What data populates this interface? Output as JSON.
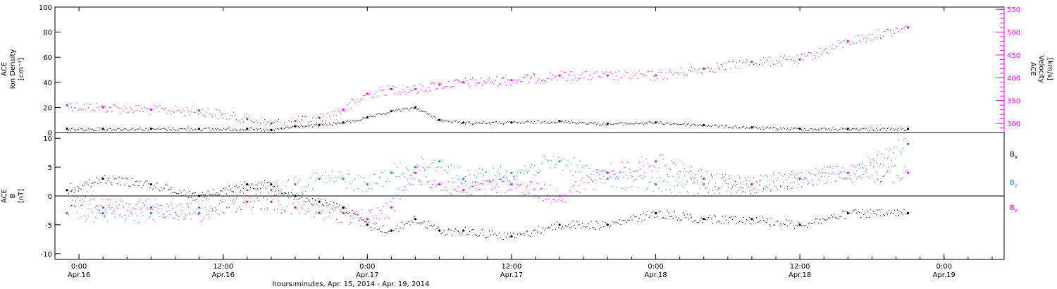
{
  "chart_data": [
    {
      "type": "scatter",
      "ylabel_lines": [
        "ACE",
        "Ion Density",
        "[cm⁻³]"
      ],
      "y_ticks": [
        "0",
        "20",
        "40",
        "60",
        "80",
        "100"
      ],
      "ylim": [
        0,
        100
      ],
      "y2label_lines": [
        "ACE",
        "Velocity",
        "[km/s]"
      ],
      "y2_ticks": [
        "300",
        "350",
        "400",
        "450",
        "500",
        "550"
      ],
      "y2lim": [
        280,
        555
      ],
      "series": [
        {
          "axis": "left",
          "color": "#000000",
          "x": [
            "2014-04-15 23:00",
            "2014-04-16 02:00",
            "2014-04-16 06:00",
            "2014-04-16 10:00",
            "2014-04-16 14:00",
            "2014-04-16 16:00",
            "2014-04-16 18:00",
            "2014-04-16 20:00",
            "2014-04-16 22:00",
            "2014-04-17 00:00",
            "2014-04-17 02:00",
            "2014-04-17 04:00",
            "2014-04-17 06:00",
            "2014-04-17 08:00",
            "2014-04-17 12:00",
            "2014-04-17 16:00",
            "2014-04-17 20:00",
            "2014-04-18 00:00",
            "2014-04-18 04:00",
            "2014-04-18 08:00",
            "2014-04-18 12:00",
            "2014-04-18 16:00",
            "2014-04-18 21:00"
          ],
          "values": [
            3,
            3,
            3,
            3,
            3,
            2,
            5,
            6,
            8,
            12,
            17,
            20,
            10,
            8,
            8,
            9,
            7,
            8,
            6,
            4,
            3,
            3,
            3
          ]
        },
        {
          "axis": "right",
          "color": "#ff00ff",
          "x": [
            "2014-04-15 23:00",
            "2014-04-16 02:00",
            "2014-04-16 06:00",
            "2014-04-16 10:00",
            "2014-04-16 14:00",
            "2014-04-16 16:00",
            "2014-04-16 18:00",
            "2014-04-16 20:00",
            "2014-04-16 22:00",
            "2014-04-17 00:00",
            "2014-04-17 02:00",
            "2014-04-17 04:00",
            "2014-04-17 06:00",
            "2014-04-17 08:00",
            "2014-04-17 12:00",
            "2014-04-17 16:00",
            "2014-04-17 20:00",
            "2014-04-18 00:00",
            "2014-04-18 04:00",
            "2014-04-18 08:00",
            "2014-04-18 12:00",
            "2014-04-18 16:00",
            "2014-04-18 21:00"
          ],
          "values": [
            340,
            335,
            330,
            328,
            310,
            300,
            305,
            312,
            330,
            365,
            375,
            375,
            385,
            390,
            395,
            405,
            405,
            405,
            420,
            435,
            440,
            480,
            510
          ]
        }
      ]
    },
    {
      "type": "scatter",
      "ylabel_lines": [
        "ACE",
        "B",
        "[nT]"
      ],
      "y_ticks": [
        "-10",
        "-5",
        "0",
        "5",
        "10"
      ],
      "ylim": [
        -11,
        11
      ],
      "zero_line": true,
      "xlabel": "hours:minutes, Apr. 15, 2014 - Apr. 19, 2014",
      "x_tick_times": [
        "0:00",
        "12:00",
        "0:00",
        "12:00",
        "0:00",
        "12:00",
        "0:00"
      ],
      "x_tick_dates": [
        "Apr.16",
        "Apr.16",
        "Apr.17",
        "Apr.17",
        "Apr.18",
        "Apr.18",
        "Apr.19"
      ],
      "xlim": [
        "2014-04-15 22:00",
        "2014-04-19 05:00"
      ],
      "series": [
        {
          "name": "B_x",
          "label_main": "B",
          "label_sub": "x",
          "color": "#000000",
          "x": [
            "2014-04-15 23:00",
            "2014-04-16 02:00",
            "2014-04-16 06:00",
            "2014-04-16 10:00",
            "2014-04-16 14:00",
            "2014-04-16 16:00",
            "2014-04-16 18:00",
            "2014-04-16 20:00",
            "2014-04-16 22:00",
            "2014-04-17 00:00",
            "2014-04-17 02:00",
            "2014-04-17 04:00",
            "2014-04-17 06:00",
            "2014-04-17 08:00",
            "2014-04-17 12:00",
            "2014-04-17 16:00",
            "2014-04-17 20:00",
            "2014-04-18 00:00",
            "2014-04-18 04:00",
            "2014-04-18 08:00",
            "2014-04-18 12:00",
            "2014-04-18 16:00",
            "2014-04-18 21:00"
          ],
          "values": [
            1,
            3,
            2,
            0,
            2,
            2,
            0,
            -1,
            -2,
            -5,
            -6,
            -4,
            -6,
            -6,
            -7,
            -5,
            -5,
            -3,
            -4,
            -4,
            -5,
            -3,
            -3
          ]
        },
        {
          "name": "B_y",
          "label_main": "B",
          "label_sub": "y",
          "color": "#1e90e0",
          "x": [
            "2014-04-15 23:00",
            "2014-04-16 02:00",
            "2014-04-16 06:00",
            "2014-04-16 10:00",
            "2014-04-16 14:00",
            "2014-04-16 16:00",
            "2014-04-16 18:00",
            "2014-04-16 20:00",
            "2014-04-16 22:00",
            "2014-04-17 00:00",
            "2014-04-17 02:00",
            "2014-04-17 04:00",
            "2014-04-17 06:00",
            "2014-04-17 08:00",
            "2014-04-17 12:00",
            "2014-04-17 16:00",
            "2014-04-17 20:00",
            "2014-04-18 00:00",
            "2014-04-18 04:00",
            "2014-04-18 08:00",
            "2014-04-18 12:00",
            "2014-04-18 16:00",
            "2014-04-18 21:00"
          ],
          "values": [
            -3,
            -3,
            -3,
            -2,
            1,
            1,
            2,
            3,
            3,
            2,
            4,
            5,
            6,
            3,
            4,
            6,
            3,
            2,
            2,
            2,
            3,
            4,
            9
          ]
        },
        {
          "name": "B_z",
          "label_main": "B",
          "label_sub": "z",
          "color": "#ff00ff",
          "x": [
            "2014-04-15 23:00",
            "2014-04-16 02:00",
            "2014-04-16 06:00",
            "2014-04-16 10:00",
            "2014-04-16 14:00",
            "2014-04-16 16:00",
            "2014-04-16 18:00",
            "2014-04-16 20:00",
            "2014-04-16 22:00",
            "2014-04-17 00:00",
            "2014-04-17 02:00",
            "2014-04-17 04:00",
            "2014-04-17 06:00",
            "2014-04-17 08:00",
            "2014-04-17 12:00",
            "2014-04-17 16:00",
            "2014-04-17 20:00",
            "2014-04-18 00:00",
            "2014-04-18 04:00",
            "2014-04-18 08:00",
            "2014-04-18 12:00",
            "2014-04-18 16:00",
            "2014-04-18 21:00"
          ],
          "values": [
            1,
            -2,
            -2,
            -3,
            -1,
            -1,
            -2,
            -3,
            -3,
            -4,
            -2,
            4,
            2,
            1,
            2,
            0,
            4,
            6,
            3,
            2,
            3,
            4,
            4
          ]
        }
      ]
    }
  ]
}
